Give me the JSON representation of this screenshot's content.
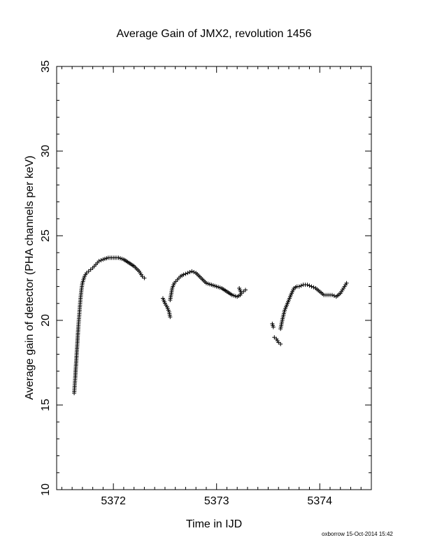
{
  "chart_data": {
    "type": "scatter",
    "title": "Average Gain of JMX2, revolution 1456",
    "xlabel": "Time in IJD",
    "ylabel": "Average gain of detector (PHA channels per keV)",
    "xlim": [
      5371.45,
      5374.5
    ],
    "ylim": [
      10,
      35
    ],
    "xticks": [
      5372,
      5373,
      5374
    ],
    "xtick_labels": [
      "5372",
      "5373",
      "5374"
    ],
    "yticks": [
      10,
      15,
      20,
      25,
      30,
      35
    ],
    "ytick_labels": [
      "10",
      "15",
      "20",
      "25",
      "30",
      "35"
    ],
    "grid": false,
    "legend": "none",
    "marker": "plus",
    "segments": [
      {
        "x": [
          5371.62,
          5371.63,
          5371.64,
          5371.65,
          5371.66,
          5371.67,
          5371.68,
          5371.69,
          5371.7,
          5371.72,
          5371.74,
          5371.76,
          5371.78,
          5371.8,
          5371.83,
          5371.86,
          5371.9,
          5371.95,
          5372.0,
          5372.05,
          5372.1,
          5372.15,
          5372.2,
          5372.25,
          5372.28,
          5372.3
        ],
        "y": [
          15.7,
          16.6,
          17.6,
          18.6,
          19.6,
          20.4,
          21.2,
          21.8,
          22.2,
          22.6,
          22.8,
          22.9,
          23.0,
          23.1,
          23.3,
          23.5,
          23.6,
          23.7,
          23.7,
          23.7,
          23.6,
          23.4,
          23.2,
          22.9,
          22.6,
          22.5
        ]
      },
      {
        "x": [
          5372.48,
          5372.5,
          5372.52,
          5372.54,
          5372.55
        ],
        "y": [
          21.3,
          21.0,
          20.8,
          20.5,
          20.2
        ]
      },
      {
        "x": [
          5372.55,
          5372.57,
          5372.59,
          5372.62,
          5372.65,
          5372.68,
          5372.72,
          5372.76,
          5372.8,
          5372.85,
          5372.9,
          5372.95,
          5373.0,
          5373.05,
          5373.1,
          5373.15,
          5373.2,
          5373.23
        ],
        "y": [
          21.2,
          21.9,
          22.2,
          22.4,
          22.6,
          22.7,
          22.8,
          22.9,
          22.8,
          22.5,
          22.2,
          22.1,
          22.0,
          21.9,
          21.7,
          21.5,
          21.4,
          21.5
        ]
      },
      {
        "x": [
          5373.22,
          5373.24,
          5373.26,
          5373.28
        ],
        "y": [
          21.9,
          21.6,
          21.7,
          21.8
        ]
      },
      {
        "x": [
          5373.54,
          5373.55
        ],
        "y": [
          19.8,
          19.6
        ]
      },
      {
        "x": [
          5373.56,
          5373.58,
          5373.6,
          5373.62
        ],
        "y": [
          19.0,
          18.9,
          18.7,
          18.6
        ]
      },
      {
        "x": [
          5373.62,
          5373.64,
          5373.66,
          5373.68,
          5373.7,
          5373.72,
          5373.75,
          5373.78,
          5373.8,
          5373.84,
          5373.88,
          5373.92,
          5373.96,
          5374.0,
          5374.04,
          5374.08,
          5374.12,
          5374.16,
          5374.2,
          5374.23,
          5374.26
        ],
        "y": [
          19.5,
          20.1,
          20.6,
          20.9,
          21.2,
          21.5,
          21.9,
          22.0,
          22.0,
          22.1,
          22.1,
          22.0,
          21.9,
          21.7,
          21.5,
          21.5,
          21.5,
          21.4,
          21.6,
          21.9,
          22.2
        ]
      }
    ]
  },
  "footer": {
    "text": "oxborrow 15-Oct-2014 15:42"
  }
}
